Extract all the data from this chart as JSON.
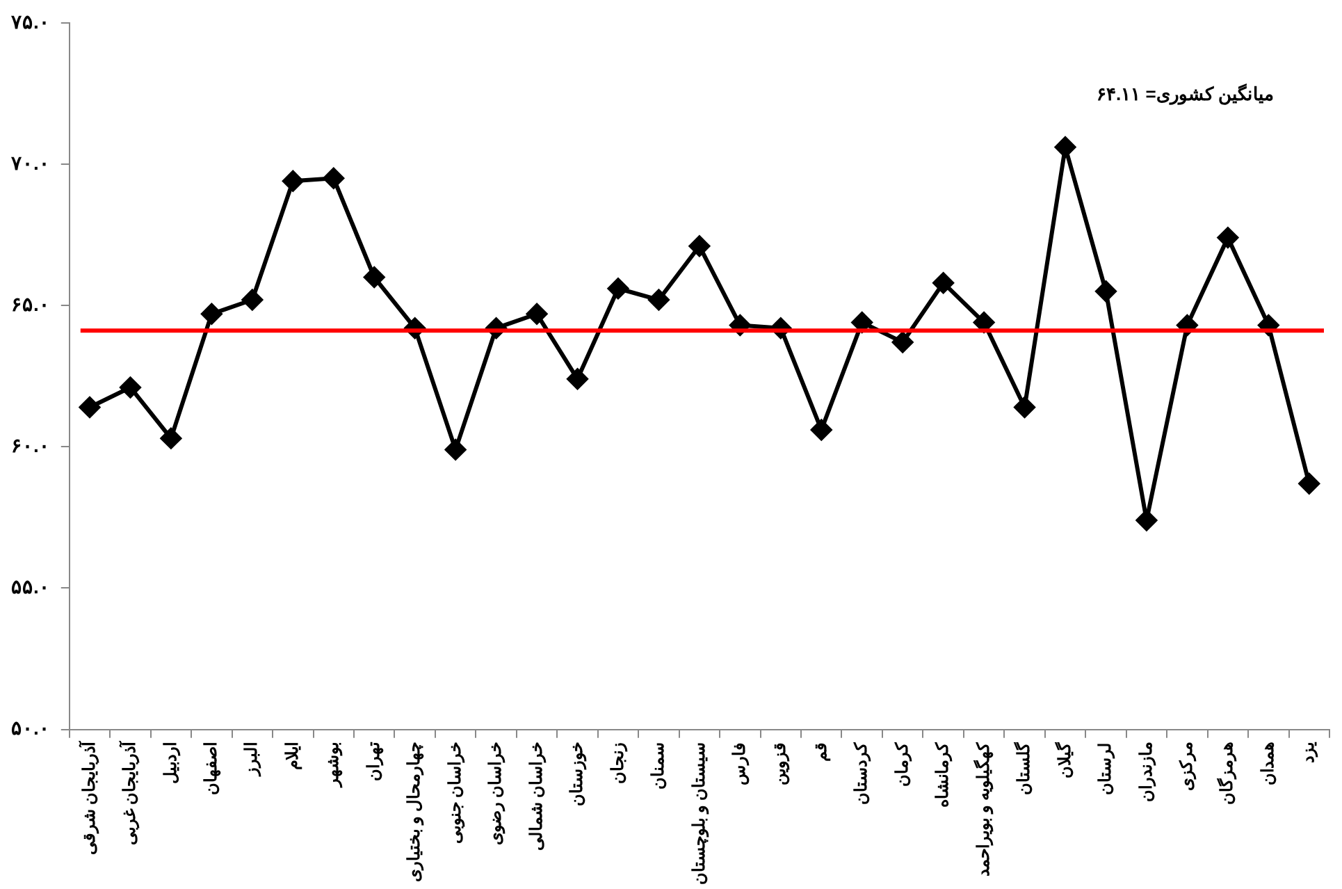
{
  "chart_data": {
    "type": "line",
    "categories": [
      "آذربایجان شرقی",
      "آذربایجان غربی",
      "اردبیل",
      "اصفهان",
      "البرز",
      "ایلام",
      "بوشهر",
      "تهران",
      "چهارمحال و بختیاری",
      "خراسان جنوبی",
      "خراسان رضوی",
      "خراسان شمالی",
      "خوزستان",
      "زنجان",
      "سمنان",
      "سیستان و بلوچستان",
      "فارس",
      "قزوین",
      "قم",
      "کردستان",
      "کرمان",
      "کرمانشاه",
      "کهگیلویه و بویراحمد",
      "گلستان",
      "گیلان",
      "لرستان",
      "مازندران",
      "مرکزی",
      "هرمزگان",
      "همدان",
      "یزد"
    ],
    "series": [
      {
        "color": "#000000",
        "values": [
          61.4,
          62.1,
          60.3,
          64.7,
          65.2,
          69.4,
          69.5,
          66.0,
          64.2,
          59.9,
          64.2,
          64.7,
          62.4,
          65.6,
          65.2,
          67.1,
          64.3,
          64.2,
          60.6,
          64.4,
          63.7,
          65.8,
          64.4,
          61.4,
          70.6,
          65.5,
          57.4,
          64.3,
          67.4,
          64.3,
          58.7
        ]
      }
    ],
    "ylim": [
      50,
      75
    ],
    "yticks": [
      {
        "value": 50,
        "label": "۵۰.۰"
      },
      {
        "value": 55,
        "label": "۵۵.۰"
      },
      {
        "value": 60,
        "label": "۶۰.۰"
      },
      {
        "value": 65,
        "label": "۶۵.۰"
      },
      {
        "value": 70,
        "label": "۷۰.۰"
      },
      {
        "value": 75,
        "label": "۷۵.۰"
      }
    ],
    "ref_lines": [
      {
        "axis": "y",
        "value": 64.11,
        "color": "#ff0000"
      }
    ],
    "annotations": [
      "میانگین کشوری= ۶۴.۱۱"
    ],
    "marker": "diamond",
    "line_style": "solid",
    "grid": false,
    "legend": false
  }
}
